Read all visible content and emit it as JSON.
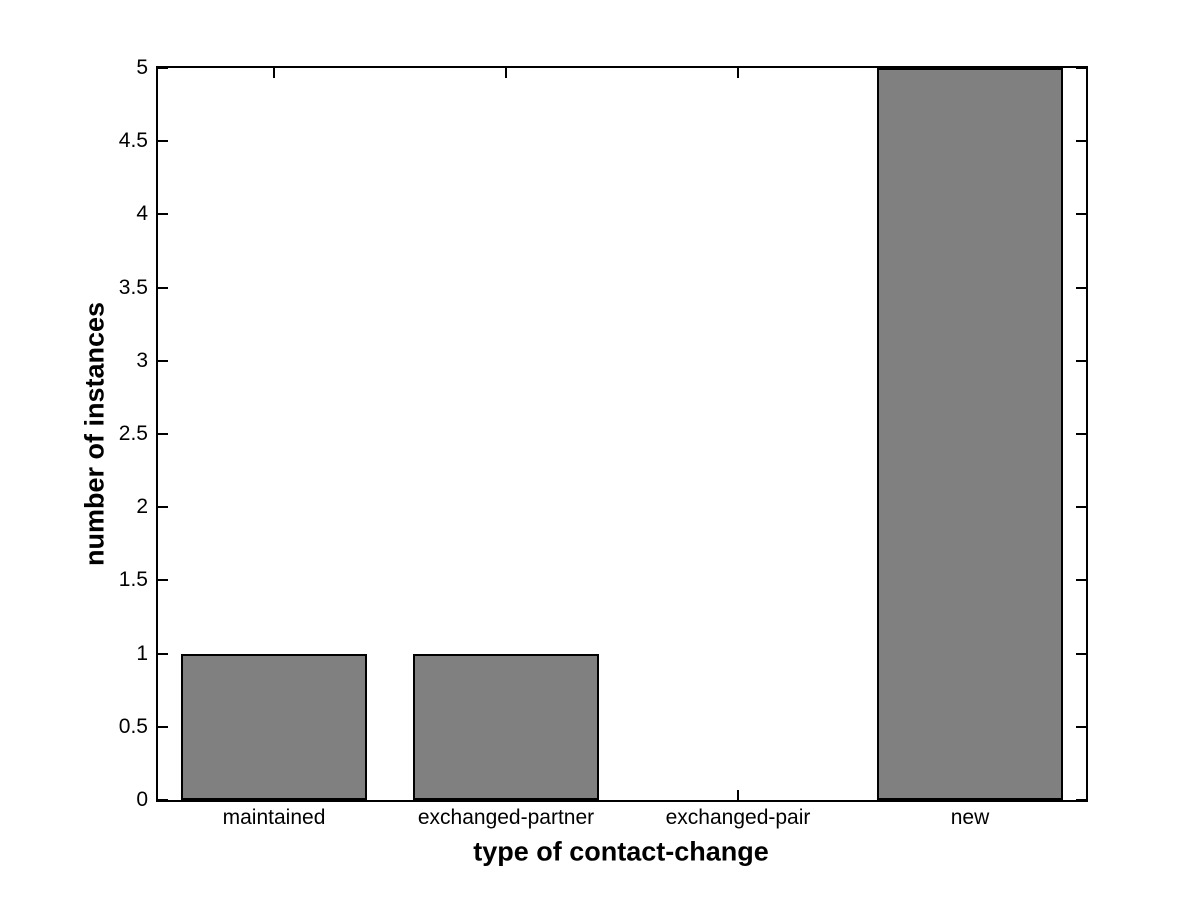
{
  "chart_data": {
    "type": "bar",
    "title": "",
    "xlabel": "type of contact-change",
    "ylabel": "number of instances",
    "categories": [
      "maintained",
      "exchanged-partner",
      "exchanged-pair",
      "new"
    ],
    "values": [
      1,
      1,
      0,
      5
    ],
    "xticks": [
      1,
      2,
      3,
      4
    ],
    "yticks": [
      0,
      0.5,
      1,
      1.5,
      2,
      2.5,
      3,
      3.5,
      4,
      4.5,
      5
    ],
    "ytick_labels": [
      "0",
      "0.5",
      "1",
      "1.5",
      "2",
      "2.5",
      "3",
      "3.5",
      "4",
      "4.5",
      "5"
    ],
    "xlim": [
      0.5,
      4.5
    ],
    "ylim": [
      0,
      5
    ],
    "bar_width_fraction": 0.8,
    "bar_fill_color": "#808080",
    "bar_edge_color": "#000000",
    "axis_color": "#000000",
    "background_color": "#ffffff",
    "grid": false,
    "legend": "none"
  }
}
